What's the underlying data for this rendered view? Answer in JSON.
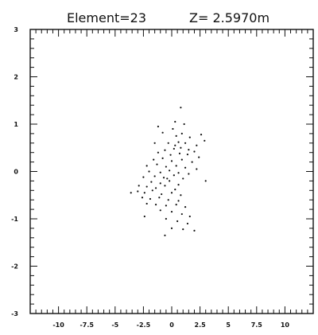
{
  "title": {
    "element_text": "Element=23",
    "z_text": "Z=  2.5970m"
  },
  "chart_data": {
    "type": "scatter",
    "title": "Element=23     Z=  2.5970m",
    "xlabel": "",
    "ylabel": "",
    "xlim": [
      -12.5,
      12.5
    ],
    "ylim": [
      -3,
      3
    ],
    "xticks": [
      -10,
      -7.5,
      -5,
      -2.5,
      0,
      2.5,
      5,
      7.5,
      10
    ],
    "xtick_labels": [
      "-10",
      "-7.5",
      "-5",
      "-2.5",
      "0",
      "2.5",
      "5",
      "7.5",
      "10"
    ],
    "yticks": [
      -3,
      -2,
      -1,
      0,
      1,
      2,
      3
    ],
    "ytick_labels": [
      "-3",
      "-2",
      "-1",
      "0",
      "1",
      "2",
      "3"
    ],
    "grid": false,
    "series": [
      {
        "points": [
          [
            0.4,
            0.75
          ],
          [
            0.9,
            0.8
          ],
          [
            1.6,
            0.72
          ],
          [
            2.6,
            0.78
          ],
          [
            -0.3,
            0.6
          ],
          [
            0.6,
            0.62
          ],
          [
            1.2,
            0.6
          ],
          [
            2.2,
            0.55
          ],
          [
            -0.6,
            0.45
          ],
          [
            0.2,
            0.48
          ],
          [
            0.8,
            0.5
          ],
          [
            1.5,
            0.46
          ],
          [
            2.0,
            0.42
          ],
          [
            -1.2,
            0.4
          ],
          [
            -0.1,
            0.35
          ],
          [
            0.7,
            0.38
          ],
          [
            1.4,
            0.36
          ],
          [
            2.4,
            0.3
          ],
          [
            -1.6,
            0.25
          ],
          [
            -0.8,
            0.28
          ],
          [
            0.0,
            0.22
          ],
          [
            0.9,
            0.25
          ],
          [
            1.8,
            0.2
          ],
          [
            -2.2,
            0.12
          ],
          [
            -1.3,
            0.15
          ],
          [
            -0.5,
            0.1
          ],
          [
            0.4,
            0.12
          ],
          [
            1.2,
            0.08
          ],
          [
            2.2,
            0.05
          ],
          [
            -2.0,
            0.0
          ],
          [
            -1.0,
            -0.02
          ],
          [
            -0.2,
            0.02
          ],
          [
            0.6,
            -0.03
          ],
          [
            1.5,
            -0.05
          ],
          [
            -2.5,
            -0.12
          ],
          [
            -1.5,
            -0.1
          ],
          [
            -0.7,
            -0.13
          ],
          [
            0.2,
            -0.08
          ],
          [
            1.0,
            -0.15
          ],
          [
            -1.8,
            -0.22
          ],
          [
            -1.0,
            -0.25
          ],
          [
            -0.2,
            -0.2
          ],
          [
            0.6,
            -0.28
          ],
          [
            -2.9,
            -0.3
          ],
          [
            -2.2,
            -0.32
          ],
          [
            -1.4,
            -0.35
          ],
          [
            -0.6,
            -0.3
          ],
          [
            0.3,
            -0.38
          ],
          [
            -3.0,
            -0.42
          ],
          [
            -2.4,
            -0.45
          ],
          [
            -1.7,
            -0.4
          ],
          [
            -0.9,
            -0.48
          ],
          [
            0.0,
            -0.45
          ],
          [
            0.8,
            -0.5
          ],
          [
            -2.6,
            -0.55
          ],
          [
            -1.9,
            -0.58
          ],
          [
            -1.1,
            -0.55
          ],
          [
            -0.3,
            -0.6
          ],
          [
            0.6,
            -0.62
          ],
          [
            -2.2,
            -0.68
          ],
          [
            -1.4,
            -0.7
          ],
          [
            -0.5,
            -0.72
          ],
          [
            0.4,
            -0.7
          ],
          [
            1.2,
            -0.75
          ],
          [
            -1.0,
            -0.82
          ],
          [
            0.0,
            -0.85
          ],
          [
            0.9,
            -0.9
          ],
          [
            1.6,
            -0.95
          ],
          [
            -0.5,
            -1.0
          ],
          [
            0.5,
            -1.05
          ],
          [
            1.4,
            -1.1
          ],
          [
            0.0,
            -1.2
          ],
          [
            1.0,
            -1.22
          ],
          [
            2.0,
            -1.25
          ],
          [
            -0.6,
            -1.35
          ],
          [
            0.8,
            1.35
          ],
          [
            -1.2,
            0.95
          ],
          [
            0.3,
            1.05
          ],
          [
            -2.4,
            -0.95
          ],
          [
            2.9,
            0.65
          ],
          [
            -3.6,
            -0.45
          ],
          [
            -1.5,
            0.6
          ],
          [
            3.0,
            -0.2
          ],
          [
            -0.8,
            0.82
          ],
          [
            0.1,
            0.9
          ],
          [
            1.1,
            1.0
          ],
          [
            -0.4,
            -0.15
          ],
          [
            0.3,
            0.55
          ]
        ]
      }
    ]
  }
}
